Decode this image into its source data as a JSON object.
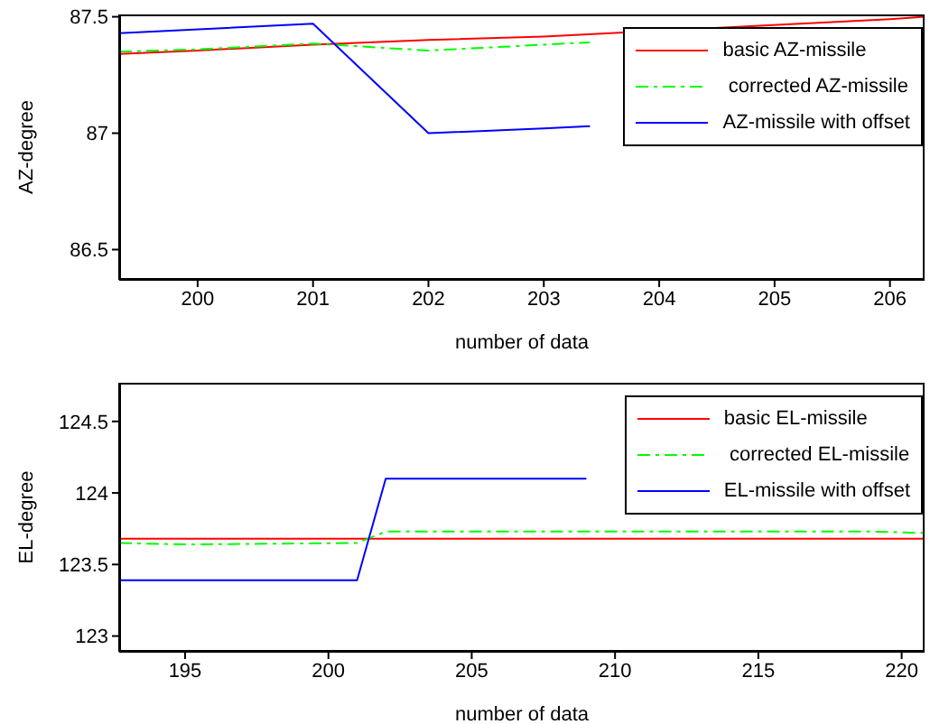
{
  "chart_data": [
    {
      "type": "line",
      "xlabel": "number of data",
      "ylabel": "AZ-degree",
      "xlim": [
        199.32,
        206.3
      ],
      "ylim": [
        86.37,
        87.51
      ],
      "xticks": [
        200,
        201,
        202,
        203,
        204,
        205,
        206
      ],
      "yticks": [
        86.5,
        87,
        87.5
      ],
      "legend": "top right",
      "grid": false,
      "series": [
        {
          "name": "basic AZ-missile",
          "color": "#ff0000",
          "line_style": "solid",
          "x": [
            199.32,
            200,
            201,
            202,
            203,
            206,
            206.3
          ],
          "values": [
            87.34,
            87.355,
            87.38,
            87.4,
            87.415,
            87.49,
            87.5
          ]
        },
        {
          "name": " corrected AZ-missile",
          "color": "#00ff00",
          "line_style": "dashed",
          "x": [
            199.32,
            200,
            201,
            202,
            203,
            203.4
          ],
          "values": [
            87.35,
            87.36,
            87.385,
            87.355,
            87.38,
            87.39
          ]
        },
        {
          "name": "AZ-missile with offset",
          "color": "#0000ff",
          "line_style": "solid",
          "x": [
            199.32,
            201,
            202,
            203,
            203.4
          ],
          "values": [
            87.43,
            87.47,
            87.0,
            87.02,
            87.03
          ]
        }
      ]
    },
    {
      "type": "line",
      "xlabel": "number of data",
      "ylabel": "EL-degree",
      "xlim": [
        192.7,
        220.8
      ],
      "ylim": [
        122.89,
        124.77
      ],
      "xticks": [
        195,
        200,
        205,
        210,
        215,
        220
      ],
      "yticks": [
        123,
        123.5,
        124,
        124.5
      ],
      "legend": "top right",
      "grid": false,
      "series": [
        {
          "name": "basic EL-missile",
          "color": "#ff0000",
          "line_style": "solid",
          "x": [
            192.7,
            220.8
          ],
          "values": [
            123.68,
            123.68
          ]
        },
        {
          "name": " corrected EL-missile",
          "color": "#00ff00",
          "line_style": "dashed",
          "x": [
            192.7,
            195,
            201,
            202,
            219,
            220.8
          ],
          "values": [
            123.65,
            123.64,
            123.65,
            123.73,
            123.73,
            123.72
          ]
        },
        {
          "name": "EL-missile with offset",
          "color": "#0000ff",
          "line_style": "solid",
          "x": [
            192.7,
            201,
            202,
            209
          ],
          "values": [
            123.39,
            123.39,
            124.1,
            124.1
          ]
        }
      ]
    }
  ]
}
